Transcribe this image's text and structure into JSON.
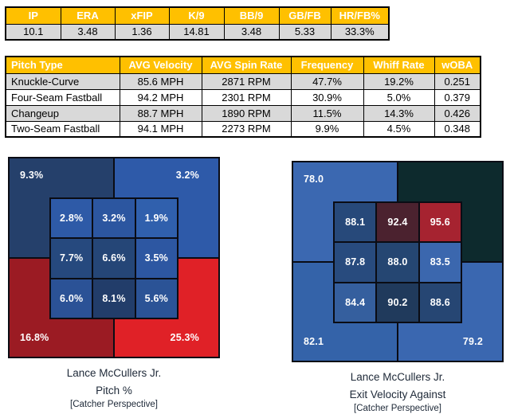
{
  "chart_data": [
    {
      "type": "table",
      "name": "pitching-summary",
      "columns": [
        "IP",
        "ERA",
        "xFIP",
        "K/9",
        "BB/9",
        "GB/FB",
        "HR/FB%"
      ],
      "rows": [
        [
          "10.1",
          "3.48",
          "1.36",
          "14.81",
          "3.48",
          "5.33",
          "33.3%"
        ]
      ]
    },
    {
      "type": "table",
      "name": "pitch-arsenal",
      "columns": [
        "Pitch Type",
        "AVG Velocity",
        "AVG Spin Rate",
        "Frequency",
        "Whiff Rate",
        "wOBA"
      ],
      "rows": [
        [
          "Knuckle-Curve",
          "85.6 MPH",
          "2871 RPM",
          "47.7%",
          "19.2%",
          "0.251"
        ],
        [
          "Four-Seam Fastball",
          "94.2 MPH",
          "2301 RPM",
          "30.9%",
          "5.0%",
          "0.379"
        ],
        [
          "Changeup",
          "88.7 MPH",
          "1890 RPM",
          "11.5%",
          "14.3%",
          "0.426"
        ],
        [
          "Two-Seam Fastball",
          "94.1 MPH",
          "2273 RPM",
          "9.9%",
          "4.5%",
          "0.348"
        ]
      ]
    },
    {
      "type": "heatmap",
      "name": "pitch-frequency-by-zone",
      "title": "Lance McCullers Jr.",
      "subtitle": "Pitch %",
      "note": "[Catcher Perspective]",
      "layout": "3x3 strike zone grid over 4 corner quadrants",
      "corners": [
        {
          "pos": "top-left",
          "label": "9.3%",
          "value": 9.3,
          "color": "#25406B"
        },
        {
          "pos": "top-right",
          "label": "3.2%",
          "value": 3.2,
          "color": "#2E5AA9"
        },
        {
          "pos": "bottom-left",
          "label": "16.8%",
          "value": 16.8,
          "color": "#9B1B23"
        },
        {
          "pos": "bottom-right",
          "label": "25.3%",
          "value": 25.3,
          "color": "#E02127"
        }
      ],
      "cells": [
        {
          "label": "2.8%",
          "value": 2.8,
          "color": "#2E5AA7"
        },
        {
          "label": "3.2%",
          "value": 3.2,
          "color": "#2C56A0"
        },
        {
          "label": "1.9%",
          "value": 1.9,
          "color": "#3060AD"
        },
        {
          "label": "7.7%",
          "value": 7.7,
          "color": "#26497E"
        },
        {
          "label": "6.6%",
          "value": 6.6,
          "color": "#254677"
        },
        {
          "label": "3.5%",
          "value": 3.5,
          "color": "#2D57A2"
        },
        {
          "label": "6.0%",
          "value": 6.0,
          "color": "#2B5296"
        },
        {
          "label": "8.1%",
          "value": 8.1,
          "color": "#223D6A"
        },
        {
          "label": "5.6%",
          "value": 5.6,
          "color": "#2B5396"
        }
      ]
    },
    {
      "type": "heatmap",
      "name": "exit-velocity-against-by-zone",
      "title": "Lance McCullers Jr.",
      "subtitle": "Exit Velocity Against",
      "note": "[Catcher Perspective]",
      "layout": "3x3 strike zone grid over 4 corner quadrants",
      "corners": [
        {
          "pos": "top-left",
          "label": "78.0",
          "value": 78.0,
          "color": "#3B68B1"
        },
        {
          "pos": "top-right",
          "label": "",
          "value": null,
          "color": "#0D2A2D"
        },
        {
          "pos": "bottom-left",
          "label": "82.1",
          "value": 82.1,
          "color": "#3463A9"
        },
        {
          "pos": "bottom-right",
          "label": "79.2",
          "value": 79.2,
          "color": "#3A67B0"
        }
      ],
      "cells": [
        {
          "label": "88.1",
          "value": 88.1,
          "color": "#27497A"
        },
        {
          "label": "92.4",
          "value": 92.4,
          "color": "#4B222F"
        },
        {
          "label": "95.6",
          "value": 95.6,
          "color": "#A62330"
        },
        {
          "label": "87.8",
          "value": 87.8,
          "color": "#284B7E"
        },
        {
          "label": "88.0",
          "value": 88.0,
          "color": "#254672"
        },
        {
          "label": "83.5",
          "value": 83.5,
          "color": "#3B67AE"
        },
        {
          "label": "84.4",
          "value": 84.4,
          "color": "#355F9E"
        },
        {
          "label": "90.2",
          "value": 90.2,
          "color": "#203A5C"
        },
        {
          "label": "88.6",
          "value": 88.6,
          "color": "#264673"
        }
      ]
    }
  ],
  "style": {
    "table_header_bg": "#FFC000",
    "table_header_text": "#FFFFFF",
    "table_alt_row_bg": "#D9D9D9",
    "zone_border": "#0A0C14",
    "caption_text": "#202B3A"
  },
  "layout_hints": {
    "summary_col_widths": [
      69,
      68,
      68,
      69,
      69,
      65,
      73
    ],
    "arsenal_col_widths": [
      143,
      103,
      112,
      91,
      89,
      58
    ]
  }
}
